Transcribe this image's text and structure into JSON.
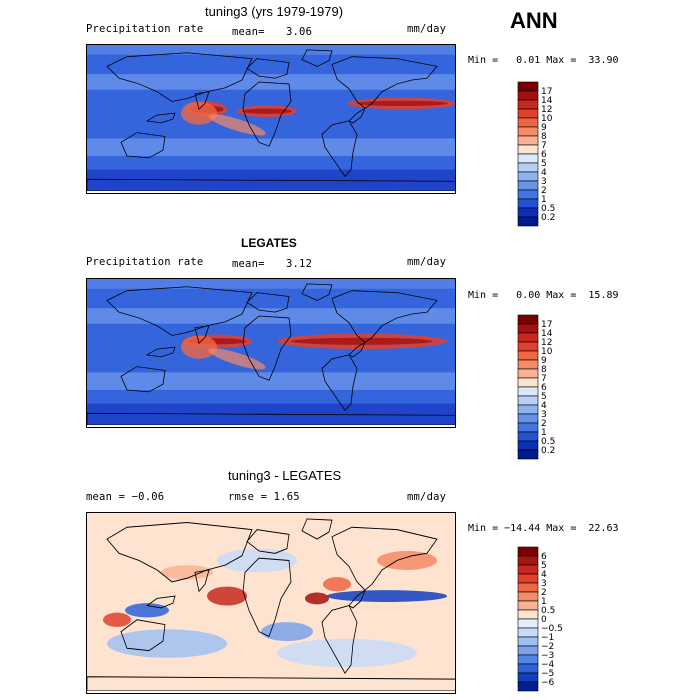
{
  "season": "ANN",
  "panels": [
    {
      "title": "tuning3 (yrs 1979-1979)",
      "field": "Precipitation rate",
      "mean_label": "mean=",
      "mean_value": "3.06",
      "units": "mm/day",
      "minmax": "Min =   0.01 Max =  33.90"
    },
    {
      "title": "LEGATES",
      "field": "Precipitation rate",
      "mean_label": "mean=",
      "mean_value": "3.12",
      "units": "mm/day",
      "minmax": "Min =   0.00 Max =  15.89"
    },
    {
      "title": "tuning3 - LEGATES",
      "mean_text": "mean =  −0.06",
      "rmse_text": "rmse =   1.65",
      "units": "mm/day",
      "minmax": "Min = −14.44 Max =  22.63"
    }
  ],
  "chart_data": [
    {
      "type": "heatmap",
      "title": "tuning3 (yrs 1979-1979)",
      "variable": "Precipitation rate",
      "units": "mm/day",
      "mean": 3.06,
      "min": 0.01,
      "max": 33.9,
      "colorbar_levels": [
        "17",
        "14",
        "12",
        "10",
        "9",
        "8",
        "7",
        "6",
        "5",
        "4",
        "3",
        "2",
        "1",
        "0.5",
        "0.2"
      ],
      "colorbar_colors": [
        "#7a0000",
        "#a50f0f",
        "#c8281e",
        "#e0402c",
        "#ef6645",
        "#f58a66",
        "#f9b394",
        "#fde3d0",
        "#dce9fb",
        "#b7cff7",
        "#8fb2f0",
        "#6893e8",
        "#4475e0",
        "#2153d2",
        "#0b2fb8",
        "#001a8f"
      ]
    },
    {
      "type": "heatmap",
      "title": "LEGATES",
      "variable": "Precipitation rate",
      "units": "mm/day",
      "mean": 3.12,
      "min": 0.0,
      "max": 15.89,
      "colorbar_levels": [
        "17",
        "14",
        "12",
        "10",
        "9",
        "8",
        "7",
        "6",
        "5",
        "4",
        "3",
        "2",
        "1",
        "0.5",
        "0.2"
      ],
      "colorbar_colors": [
        "#7a0000",
        "#a50f0f",
        "#c8281e",
        "#e0402c",
        "#ef6645",
        "#f58a66",
        "#f9b394",
        "#fde3d0",
        "#dce9fb",
        "#b7cff7",
        "#8fb2f0",
        "#6893e8",
        "#4475e0",
        "#2153d2",
        "#0b2fb8",
        "#001a8f"
      ]
    },
    {
      "type": "heatmap",
      "title": "tuning3 - LEGATES",
      "units": "mm/day",
      "mean": -0.06,
      "rmse": 1.65,
      "min": -14.44,
      "max": 22.63,
      "colorbar_levels": [
        "6",
        "5",
        "4",
        "3",
        "2",
        "1",
        "0.5",
        "0",
        "−0.5",
        "−1",
        "−2",
        "−3",
        "−4",
        "−5",
        "−6"
      ],
      "colorbar_colors": [
        "#7a0000",
        "#a8150f",
        "#c8281e",
        "#e0402c",
        "#ef6645",
        "#f58a66",
        "#f9b394",
        "#fde3d0",
        "#e6eefc",
        "#c8daf8",
        "#a0c0f2",
        "#7aa3ec",
        "#5585e4",
        "#2e62d8",
        "#123ec2",
        "#00208f"
      ]
    }
  ]
}
